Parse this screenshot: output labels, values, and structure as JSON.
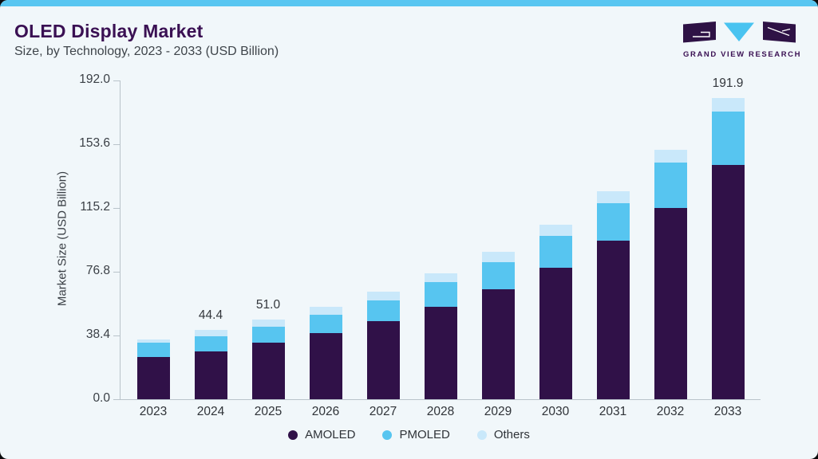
{
  "header": {
    "title": "OLED Display Market",
    "subtitle": "Size, by Technology, 2023 - 2033 (USD Billion)"
  },
  "logo": {
    "text": "GRAND VIEW RESEARCH",
    "dark_color": "#2e1245",
    "accent_color": "#49c3f0"
  },
  "colors": {
    "card_background": "#f1f7fa",
    "accent_strip": "#59c6f1",
    "title_text": "#3a1053",
    "axis_line": "#b9c3ca",
    "tick_text": "#3a3f45"
  },
  "chart_data": {
    "type": "bar",
    "stacked": true,
    "title": "OLED Display Market Size, by Technology, 2023 - 2033 (USD Billion)",
    "xlabel": "",
    "ylabel": "Market Size (USD Billion)",
    "ylim": [
      0,
      192
    ],
    "y_ticks": [
      "0.0",
      "38.4",
      "76.8",
      "115.2",
      "153.6",
      "192.0"
    ],
    "grid": false,
    "legend_position": "bottom",
    "categories": [
      "2023",
      "2024",
      "2025",
      "2026",
      "2027",
      "2028",
      "2029",
      "2030",
      "2031",
      "2032",
      "2033"
    ],
    "series": [
      {
        "name": "AMOLED",
        "color": "#301148",
        "values": [
          27.0,
          30.5,
          36.0,
          42.2,
          49.5,
          58.8,
          70.1,
          83.8,
          101.1,
          122.0,
          149.1
        ]
      },
      {
        "name": "PMOLED",
        "color": "#57c5f0",
        "values": [
          8.8,
          9.4,
          10.3,
          11.4,
          13.2,
          15.6,
          17.4,
          20.5,
          24.0,
          28.9,
          34.3
        ]
      },
      {
        "name": "Others",
        "color": "#c9e8fa",
        "values": [
          2.4,
          4.5,
          4.7,
          5.2,
          5.7,
          5.6,
          6.6,
          6.9,
          7.4,
          7.9,
          8.5
        ]
      }
    ],
    "totals": [
      38.2,
      44.4,
      51.0,
      58.8,
      68.4,
      80.0,
      94.1,
      111.2,
      132.5,
      158.8,
      191.9
    ],
    "bar_value_labels": [
      "",
      "44.4",
      "51.0",
      "",
      "",
      "",
      "",
      "",
      "",
      "",
      "191.9"
    ]
  }
}
